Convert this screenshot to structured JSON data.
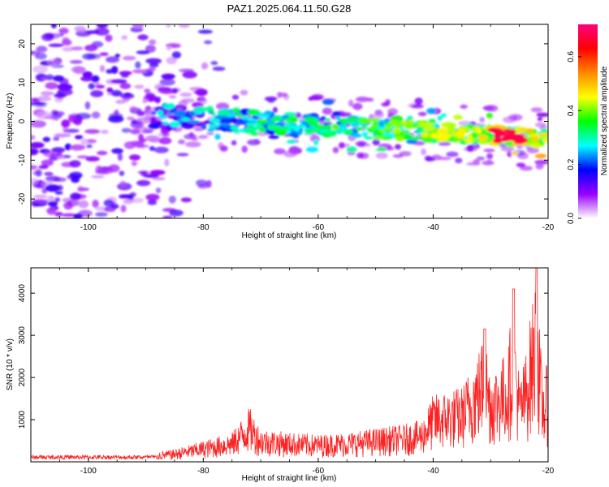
{
  "figure_title": "PAZ1.2025.064.11.50.G28",
  "chart_data": [
    {
      "type": "heatmap",
      "title": "PAZ1.2025.064.11.50.G28",
      "xlabel": "Height of straight line (km)",
      "ylabel": "Frequency (Hz)",
      "xlim": [
        -110,
        -20
      ],
      "ylim": [
        -25,
        25
      ],
      "x_ticks": [
        -100,
        -80,
        -60,
        -40,
        -20
      ],
      "y_ticks": [
        -20,
        -10,
        0,
        10,
        20
      ],
      "colorbar": {
        "label": "Normalized spectral amplitude",
        "range": [
          0,
          0.72
        ],
        "ticks": [
          "0.0",
          "0.2",
          "0.4",
          "0.6"
        ],
        "tick_values": [
          0,
          0.2,
          0.4,
          0.6
        ],
        "colors": [
          "#ffffff",
          "#9900ff",
          "#0000ff",
          "#00ffff",
          "#00ff00",
          "#ffff00",
          "#ff8800",
          "#ff0000",
          "#ff0080"
        ]
      },
      "features": [
        {
          "name": "noise",
          "x_range": [
            -110,
            -85
          ],
          "y_range": [
            -25,
            25
          ],
          "amplitude": 0.1
        },
        {
          "name": "signal_track",
          "x_start": -90,
          "x_end": -20,
          "freq_at_start": 1.5,
          "freq_at_end": -4.5,
          "peak_amplitude": 0.68,
          "peak_x": -27
        }
      ]
    },
    {
      "type": "line",
      "xlabel": "Height of straight line (km)",
      "ylabel": "SNR (10 * v/v)",
      "xlim": [
        -110,
        -20
      ],
      "ylim": [
        0,
        4600
      ],
      "x_ticks": [
        -100,
        -80,
        -60,
        -40,
        -20
      ],
      "y_ticks": [
        1000,
        2000,
        3000,
        4000
      ],
      "color": "#ff2020",
      "x": [
        -110,
        -100,
        -90,
        -85,
        -80,
        -75,
        -72,
        -70,
        -65,
        -60,
        -55,
        -50,
        -45,
        -42,
        -40,
        -35,
        -32,
        -31,
        -30,
        -28,
        -27,
        -26,
        -25,
        -24,
        -22,
        -21,
        -20
      ],
      "y": [
        120,
        150,
        180,
        300,
        500,
        700,
        1300,
        800,
        700,
        650,
        700,
        800,
        900,
        1000,
        1600,
        1800,
        2700,
        3150,
        2200,
        2500,
        2700,
        4100,
        2000,
        2500,
        4600,
        2000,
        2400
      ]
    }
  ]
}
